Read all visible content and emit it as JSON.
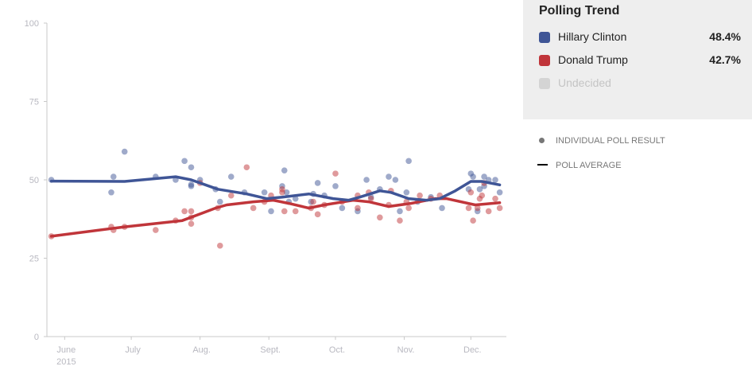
{
  "chart_data": {
    "type": "scatter",
    "title": "",
    "xlabel": "",
    "ylabel": "",
    "ylim": [
      0,
      100
    ],
    "xlim": [
      "2015-05-24",
      "2015-12-17"
    ],
    "y_ticks": [
      "0",
      "25",
      "50",
      "75",
      "100"
    ],
    "x_ticks": [
      {
        "date": "2015-06-01",
        "label": "June",
        "sub": "2015"
      },
      {
        "date": "2015-07-01",
        "label": "July",
        "sub": ""
      },
      {
        "date": "2015-08-01",
        "label": "Aug.",
        "sub": ""
      },
      {
        "date": "2015-09-01",
        "label": "Sept.",
        "sub": ""
      },
      {
        "date": "2015-10-01",
        "label": "Oct.",
        "sub": ""
      },
      {
        "date": "2015-11-01",
        "label": "Nov.",
        "sub": ""
      },
      {
        "date": "2015-12-01",
        "label": "Dec.",
        "sub": ""
      }
    ],
    "grid": false,
    "series": [
      {
        "name": "Hillary Clinton",
        "color": "#3f5596",
        "polls": [
          [
            "2015-05-26",
            50
          ],
          [
            "2015-06-22",
            46
          ],
          [
            "2015-06-23",
            51
          ],
          [
            "2015-06-28",
            59
          ],
          [
            "2015-07-12",
            51
          ],
          [
            "2015-07-21",
            50
          ],
          [
            "2015-07-25",
            56
          ],
          [
            "2015-07-28",
            54
          ],
          [
            "2015-07-28",
            48.5
          ],
          [
            "2015-07-28",
            48
          ],
          [
            "2015-08-01",
            50
          ],
          [
            "2015-08-08",
            47
          ],
          [
            "2015-08-10",
            43
          ],
          [
            "2015-08-15",
            51
          ],
          [
            "2015-08-21",
            46
          ],
          [
            "2015-08-30",
            46
          ],
          [
            "2015-09-02",
            40
          ],
          [
            "2015-09-07",
            48
          ],
          [
            "2015-09-08",
            53
          ],
          [
            "2015-09-09",
            46
          ],
          [
            "2015-09-10",
            43
          ],
          [
            "2015-09-13",
            44
          ],
          [
            "2015-09-20",
            43
          ],
          [
            "2015-09-21",
            45.5
          ],
          [
            "2015-09-23",
            49
          ],
          [
            "2015-09-26",
            45
          ],
          [
            "2015-10-01",
            48
          ],
          [
            "2015-10-04",
            41
          ],
          [
            "2015-10-11",
            40
          ],
          [
            "2015-10-15",
            50
          ],
          [
            "2015-10-17",
            44.5
          ],
          [
            "2015-10-21",
            47
          ],
          [
            "2015-10-25",
            51
          ],
          [
            "2015-10-28",
            50
          ],
          [
            "2015-10-30",
            40
          ],
          [
            "2015-11-02",
            46
          ],
          [
            "2015-11-03",
            56
          ],
          [
            "2015-11-07",
            43
          ],
          [
            "2015-11-13",
            44.5
          ],
          [
            "2015-11-18",
            41
          ],
          [
            "2015-11-30",
            47
          ],
          [
            "2015-12-01",
            52
          ],
          [
            "2015-12-02",
            51
          ],
          [
            "2015-12-04",
            40
          ],
          [
            "2015-12-05",
            47
          ],
          [
            "2015-12-07",
            51
          ],
          [
            "2015-12-07",
            48
          ],
          [
            "2015-12-09",
            50
          ],
          [
            "2015-12-12",
            50
          ],
          [
            "2015-12-14",
            46
          ]
        ],
        "average": [
          [
            "2015-05-26",
            49.6
          ],
          [
            "2015-06-28",
            49.5
          ],
          [
            "2015-07-21",
            51
          ],
          [
            "2015-07-28",
            50
          ],
          [
            "2015-08-09",
            47
          ],
          [
            "2015-08-22",
            45.5
          ],
          [
            "2015-08-31",
            44
          ],
          [
            "2015-09-07",
            44.5
          ],
          [
            "2015-09-19",
            45.5
          ],
          [
            "2015-09-30",
            44
          ],
          [
            "2015-10-07",
            43.5
          ],
          [
            "2015-10-12",
            44.5
          ],
          [
            "2015-10-21",
            46.5
          ],
          [
            "2015-10-26",
            46
          ],
          [
            "2015-11-03",
            44
          ],
          [
            "2015-11-11",
            43.5
          ],
          [
            "2015-11-17",
            44
          ],
          [
            "2015-11-24",
            46.5
          ],
          [
            "2015-12-01",
            49.5
          ],
          [
            "2015-12-06",
            49.5
          ],
          [
            "2015-12-14",
            48.4
          ]
        ]
      },
      {
        "name": "Donald Trump",
        "color": "#c0353a",
        "polls": [
          [
            "2015-05-26",
            32
          ],
          [
            "2015-06-22",
            35
          ],
          [
            "2015-06-23",
            34
          ],
          [
            "2015-06-28",
            35
          ],
          [
            "2015-07-12",
            34
          ],
          [
            "2015-07-21",
            37
          ],
          [
            "2015-07-25",
            40
          ],
          [
            "2015-07-28",
            40
          ],
          [
            "2015-07-28",
            38
          ],
          [
            "2015-07-28",
            36
          ],
          [
            "2015-08-01",
            49
          ],
          [
            "2015-08-10",
            29
          ],
          [
            "2015-08-09",
            41
          ],
          [
            "2015-08-15",
            45
          ],
          [
            "2015-08-22",
            54
          ],
          [
            "2015-08-25",
            41
          ],
          [
            "2015-08-30",
            43
          ],
          [
            "2015-09-02",
            45
          ],
          [
            "2015-09-07",
            47
          ],
          [
            "2015-09-08",
            40
          ],
          [
            "2015-09-07",
            46
          ],
          [
            "2015-09-13",
            40
          ],
          [
            "2015-09-20",
            41
          ],
          [
            "2015-09-21",
            43
          ],
          [
            "2015-09-23",
            39
          ],
          [
            "2015-09-26",
            42
          ],
          [
            "2015-10-01",
            52
          ],
          [
            "2015-10-04",
            43
          ],
          [
            "2015-10-11",
            41
          ],
          [
            "2015-10-11",
            45
          ],
          [
            "2015-10-16",
            46
          ],
          [
            "2015-10-17",
            44
          ],
          [
            "2015-10-21",
            38
          ],
          [
            "2015-10-25",
            42
          ],
          [
            "2015-10-26",
            46.5
          ],
          [
            "2015-10-30",
            37
          ],
          [
            "2015-11-02",
            43
          ],
          [
            "2015-11-03",
            41
          ],
          [
            "2015-11-08",
            45
          ],
          [
            "2015-11-13",
            44
          ],
          [
            "2015-11-17",
            45
          ],
          [
            "2015-11-30",
            41
          ],
          [
            "2015-12-01",
            46
          ],
          [
            "2015-12-02",
            37
          ],
          [
            "2015-12-04",
            41
          ],
          [
            "2015-12-05",
            44
          ],
          [
            "2015-12-06",
            45
          ],
          [
            "2015-12-07",
            49
          ],
          [
            "2015-12-09",
            40
          ],
          [
            "2015-12-12",
            44
          ],
          [
            "2015-12-14",
            41
          ]
        ],
        "average": [
          [
            "2015-05-26",
            32
          ],
          [
            "2015-06-28",
            35
          ],
          [
            "2015-07-24",
            37
          ],
          [
            "2015-08-08",
            41
          ],
          [
            "2015-08-13",
            42
          ],
          [
            "2015-08-25",
            43
          ],
          [
            "2015-09-03",
            43.5
          ],
          [
            "2015-09-10",
            42.5
          ],
          [
            "2015-09-19",
            41
          ],
          [
            "2015-09-26",
            42
          ],
          [
            "2015-10-09",
            43.5
          ],
          [
            "2015-10-16",
            43
          ],
          [
            "2015-10-25",
            41.5
          ],
          [
            "2015-11-04",
            42.5
          ],
          [
            "2015-11-15",
            44
          ],
          [
            "2015-11-20",
            44
          ],
          [
            "2015-12-03",
            42
          ],
          [
            "2015-12-14",
            42.7
          ]
        ]
      }
    ]
  },
  "panel": {
    "title": "Polling Trend",
    "rows": [
      {
        "label": "Hillary Clinton",
        "value": "48.4%",
        "color": "#3f5596"
      },
      {
        "label": "Donald Trump",
        "value": "42.7%",
        "color": "#c0353a"
      },
      {
        "label": "Undecided",
        "value": "",
        "color": "#cccccc"
      }
    ],
    "background": "#eeeeee"
  },
  "key": {
    "dot_label": "INDIVIDUAL POLL RESULT",
    "line_label": "POLL AVERAGE"
  }
}
